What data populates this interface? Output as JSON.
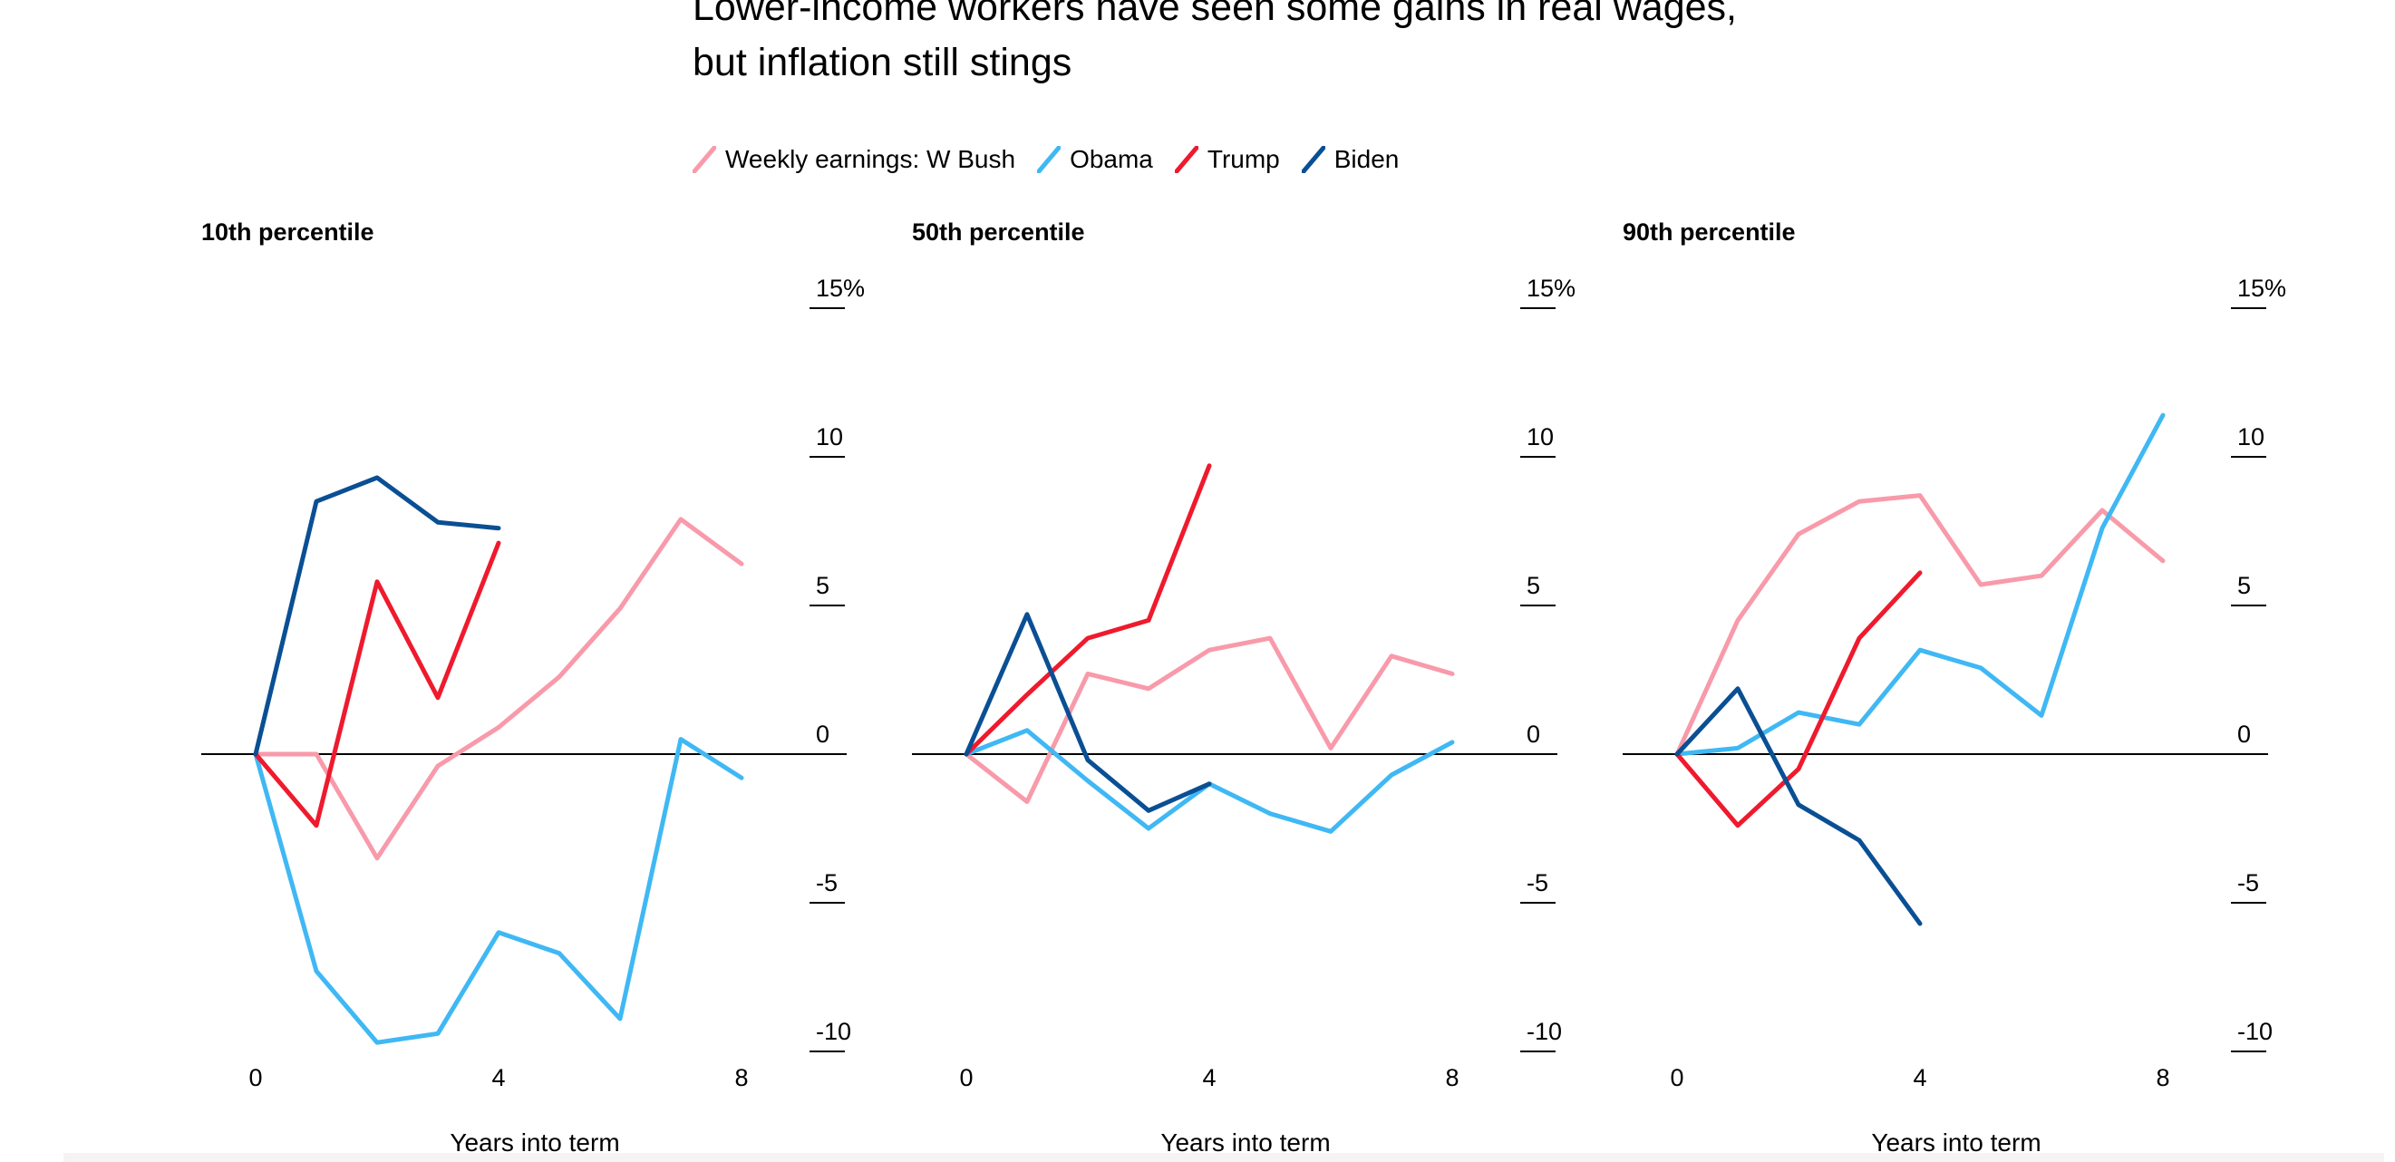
{
  "title_lines": [
    "Lower-income workers have seen some gains in real wages,",
    "but inflation still stings"
  ],
  "legend": [
    {
      "label": "Weekly earnings: W Bush",
      "color": "#f89aaa"
    },
    {
      "label": "Obama",
      "color": "#3fb8f4"
    },
    {
      "label": "Trump",
      "color": "#ef1a2d"
    },
    {
      "label": "Biden",
      "color": "#0a4f94"
    }
  ],
  "chart_data": [
    {
      "type": "line",
      "title": "10th percentile",
      "xlabel": "Years into term",
      "ylabel": "",
      "xlim": [
        0,
        8
      ],
      "ylim": [
        -10,
        15
      ],
      "x_ticks": [
        "0",
        "4",
        "8"
      ],
      "y_ticks": [
        "15%",
        "10",
        "5",
        "0",
        "-5",
        "-10"
      ],
      "series": [
        {
          "name": "Weekly earnings: W Bush",
          "color": "#f89aaa",
          "x": [
            0,
            1,
            2,
            3,
            4,
            5,
            6,
            7,
            8
          ],
          "y": [
            0,
            0,
            -3.5,
            -0.4,
            0.9,
            2.6,
            4.9,
            7.9,
            6.4
          ]
        },
        {
          "name": "Obama",
          "color": "#3fb8f4",
          "x": [
            0,
            1,
            2,
            3,
            4,
            5,
            6,
            7,
            8
          ],
          "y": [
            0,
            -7.3,
            -9.7,
            -9.4,
            -6.0,
            -6.7,
            -8.9,
            0.5,
            -0.8
          ]
        },
        {
          "name": "Trump",
          "color": "#ef1a2d",
          "x": [
            0,
            1,
            2,
            3,
            4
          ],
          "y": [
            0,
            -2.4,
            5.8,
            1.9,
            7.1
          ]
        },
        {
          "name": "Biden",
          "color": "#0a4f94",
          "x": [
            0,
            1,
            2,
            3,
            4
          ],
          "y": [
            0,
            8.5,
            9.3,
            7.8,
            7.6
          ]
        }
      ]
    },
    {
      "type": "line",
      "title": "50th percentile",
      "xlabel": "Years into term",
      "ylabel": "",
      "xlim": [
        0,
        8
      ],
      "ylim": [
        -10,
        15
      ],
      "x_ticks": [
        "0",
        "4",
        "8"
      ],
      "y_ticks": [
        "15%",
        "10",
        "5",
        "0",
        "-5",
        "-10"
      ],
      "series": [
        {
          "name": "Weekly earnings: W Bush",
          "color": "#f89aaa",
          "x": [
            0,
            1,
            2,
            3,
            4,
            5,
            6,
            7,
            8
          ],
          "y": [
            0,
            -1.6,
            2.7,
            2.2,
            3.5,
            3.9,
            0.2,
            3.3,
            2.7
          ]
        },
        {
          "name": "Obama",
          "color": "#3fb8f4",
          "x": [
            0,
            1,
            2,
            3,
            4,
            5,
            6,
            7,
            8
          ],
          "y": [
            0,
            0.8,
            -0.9,
            -2.5,
            -1.0,
            -2.0,
            -2.6,
            -0.7,
            0.4
          ]
        },
        {
          "name": "Trump",
          "color": "#ef1a2d",
          "x": [
            0,
            1,
            2,
            3,
            4
          ],
          "y": [
            0,
            2.0,
            3.9,
            4.5,
            9.7
          ]
        },
        {
          "name": "Biden",
          "color": "#0a4f94",
          "x": [
            0,
            1,
            2,
            3,
            4
          ],
          "y": [
            0,
            4.7,
            -0.2,
            -1.9,
            -1.0
          ]
        }
      ]
    },
    {
      "type": "line",
      "title": "90th percentile",
      "xlabel": "Years into term",
      "ylabel": "",
      "xlim": [
        0,
        8
      ],
      "ylim": [
        -10,
        15
      ],
      "x_ticks": [
        "0",
        "4",
        "8"
      ],
      "y_ticks": [
        "15%",
        "10",
        "5",
        "0",
        "-5",
        "-10"
      ],
      "series": [
        {
          "name": "Weekly earnings: W Bush",
          "color": "#f89aaa",
          "x": [
            0,
            1,
            2,
            3,
            4,
            5,
            6,
            7,
            8
          ],
          "y": [
            0,
            4.5,
            7.4,
            8.5,
            8.7,
            5.7,
            6.0,
            8.2,
            6.5
          ]
        },
        {
          "name": "Obama",
          "color": "#3fb8f4",
          "x": [
            0,
            1,
            2,
            3,
            4,
            5,
            6,
            7,
            8
          ],
          "y": [
            0,
            0.2,
            1.4,
            1.0,
            3.5,
            2.9,
            1.3,
            7.6,
            11.4
          ]
        },
        {
          "name": "Trump",
          "color": "#ef1a2d",
          "x": [
            0,
            1,
            2,
            3,
            4
          ],
          "y": [
            0,
            -2.4,
            -0.5,
            3.9,
            6.1
          ]
        },
        {
          "name": "Biden",
          "color": "#0a4f94",
          "x": [
            0,
            1,
            2,
            3,
            4
          ],
          "y": [
            0,
            2.2,
            -1.7,
            -2.9,
            -5.7
          ]
        }
      ]
    }
  ]
}
